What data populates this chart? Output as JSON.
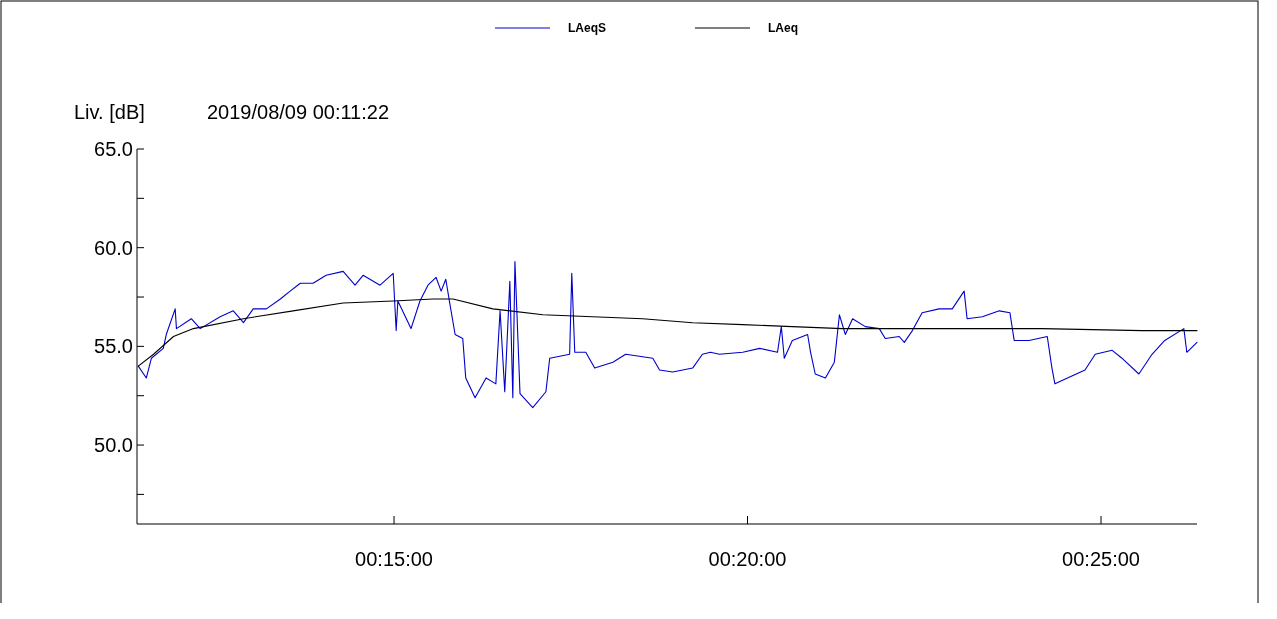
{
  "chart_data": {
    "type": "line",
    "ylabel": "Liv. [dB]",
    "subtitle": "2019/08/09 00:11:22",
    "legend": "top",
    "grid": false,
    "line_style": "solid",
    "marker": "none",
    "xlim": [
      0.1894,
      0.4393
    ],
    "xticks": [
      {
        "value": 0.25,
        "label": "00:15:00"
      },
      {
        "value": 0.33333,
        "label": "00:20:00"
      },
      {
        "value": 0.41667,
        "label": "00:25:00"
      }
    ],
    "ylim": [
      46,
      65
    ],
    "yticks": [
      {
        "value": 47.5,
        "label": null
      },
      {
        "value": 50,
        "label": "50.0"
      },
      {
        "value": 52.5,
        "label": null
      },
      {
        "value": 55,
        "label": "55.0"
      },
      {
        "value": 57.5,
        "label": null
      },
      {
        "value": 60,
        "label": "60.0"
      },
      {
        "value": 62.5,
        "label": null
      },
      {
        "value": 65,
        "label": "65.0"
      }
    ],
    "series": [
      {
        "name": "LAeqS",
        "color": "#0000cc",
        "x": [
          0.1897,
          0.1916,
          0.1928,
          0.1956,
          0.1963,
          0.1984,
          0.1987,
          0.2022,
          0.2043,
          0.209,
          0.2121,
          0.2145,
          0.2168,
          0.2199,
          0.2232,
          0.2255,
          0.2279,
          0.2309,
          0.234,
          0.238,
          0.2408,
          0.2427,
          0.2467,
          0.2498,
          0.2505,
          0.2509,
          0.254,
          0.2561,
          0.258,
          0.2599,
          0.2611,
          0.2622,
          0.2632,
          0.2644,
          0.2662,
          0.2669,
          0.2691,
          0.2717,
          0.274,
          0.275,
          0.2761,
          0.2773,
          0.278,
          0.2785,
          0.2797,
          0.2827,
          0.2858,
          0.2867,
          0.2914,
          0.2919,
          0.2926,
          0.2952,
          0.2973,
          0.3016,
          0.3046,
          0.311,
          0.3126,
          0.3157,
          0.3204,
          0.3227,
          0.3246,
          0.3267,
          0.3322,
          0.3362,
          0.3404,
          0.3413,
          0.342,
          0.3439,
          0.3475,
          0.3482,
          0.3493,
          0.3517,
          0.3538,
          0.355,
          0.3564,
          0.3581,
          0.3611,
          0.3644,
          0.3658,
          0.3691,
          0.3703,
          0.3722,
          0.3745,
          0.3785,
          0.3816,
          0.3844,
          0.3851,
          0.3887,
          0.3927,
          0.3952,
          0.3962,
          0.3997,
          0.404,
          0.4051,
          0.4058,
          0.4098,
          0.4129,
          0.4153,
          0.4193,
          0.4216,
          0.4256,
          0.4287,
          0.4317,
          0.4362,
          0.4369,
          0.4393
        ],
        "values": [
          54.0,
          53.4,
          54.4,
          54.9,
          55.6,
          56.9,
          55.9,
          56.4,
          55.9,
          56.5,
          56.8,
          56.2,
          56.9,
          56.9,
          57.4,
          57.8,
          58.2,
          58.2,
          58.6,
          58.8,
          58.1,
          58.6,
          58.1,
          58.7,
          55.8,
          57.3,
          55.9,
          57.3,
          58.1,
          58.5,
          57.8,
          58.4,
          57.1,
          55.6,
          55.4,
          53.4,
          52.4,
          53.4,
          53.1,
          56.8,
          52.7,
          58.3,
          52.4,
          59.3,
          52.6,
          51.9,
          52.7,
          54.4,
          54.6,
          58.7,
          54.7,
          54.7,
          53.9,
          54.2,
          54.6,
          54.4,
          53.8,
          53.7,
          53.9,
          54.6,
          54.7,
          54.6,
          54.7,
          54.9,
          54.7,
          56.0,
          54.4,
          55.3,
          55.6,
          54.7,
          53.6,
          53.4,
          54.2,
          56.6,
          55.6,
          56.4,
          56.0,
          55.9,
          55.4,
          55.5,
          55.2,
          55.8,
          56.7,
          56.9,
          56.9,
          57.8,
          56.4,
          56.5,
          56.8,
          56.7,
          55.3,
          55.3,
          55.5,
          53.9,
          53.1,
          53.5,
          53.8,
          54.6,
          54.8,
          54.4,
          53.6,
          54.6,
          55.3,
          55.9,
          54.7,
          55.2
        ]
      },
      {
        "name": "LAeq",
        "color": "#000000",
        "x": [
          0.1897,
          0.1933,
          0.198,
          0.2027,
          0.2145,
          0.2262,
          0.238,
          0.2498,
          0.2592,
          0.2639,
          0.2733,
          0.2851,
          0.2968,
          0.3086,
          0.3204,
          0.3322,
          0.3439,
          0.3557,
          0.3792,
          0.4028,
          0.4263,
          0.4393
        ],
        "values": [
          54.0,
          54.6,
          55.5,
          55.9,
          56.4,
          56.8,
          57.2,
          57.3,
          57.4,
          57.4,
          56.9,
          56.6,
          56.5,
          56.4,
          56.2,
          56.1,
          56.0,
          55.9,
          55.9,
          55.9,
          55.8,
          55.8
        ]
      }
    ]
  }
}
